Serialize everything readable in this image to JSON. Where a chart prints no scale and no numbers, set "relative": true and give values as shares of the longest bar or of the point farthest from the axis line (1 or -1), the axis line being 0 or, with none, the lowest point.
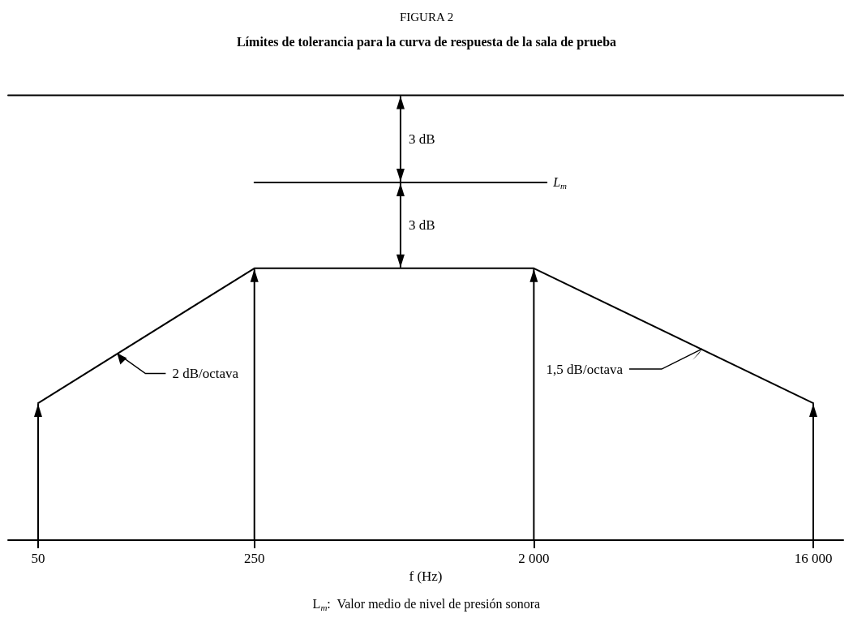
{
  "chart_data": {
    "type": "line",
    "title": "FIGURA 2",
    "subtitle": "Límites de tolerancia para la curva de respuesta de la sala de prueba",
    "xlabel": "f (Hz)",
    "relative": true,
    "log": "x",
    "xlim": [
      40,
      20000
    ],
    "xticks": [
      50,
      250,
      {
        "value": 2000,
        "label": "2 000"
      },
      {
        "value": 16000,
        "label": "16 000"
      }
    ],
    "grid": false,
    "legend": false,
    "marker": "none",
    "line_style": "solid",
    "series": [
      {
        "color": "#000000",
        "x": [
          40,
          20000
        ],
        "values": [
          1,
          1
        ]
      },
      {
        "name": "L$_{m}$",
        "color": "#000000",
        "x": [
          250,
          2200
        ],
        "values": [
          0.804,
          0.804
        ]
      },
      {
        "color": "#000000",
        "x": [
          50,
          250,
          2000,
          16000
        ],
        "values": [
          0.308,
          0.611,
          0.611,
          0.308
        ]
      }
    ],
    "annotations": [
      "3 dB",
      "3 dB",
      {
        "text": "2 dB/octava",
        "x": 90,
        "y": 0.42
      },
      {
        "text": "1,5 dB/octava",
        "x": 7000,
        "y": 0.43
      },
      "L$_{m}$:  Valor medio de nivel de presión sonora"
    ]
  }
}
